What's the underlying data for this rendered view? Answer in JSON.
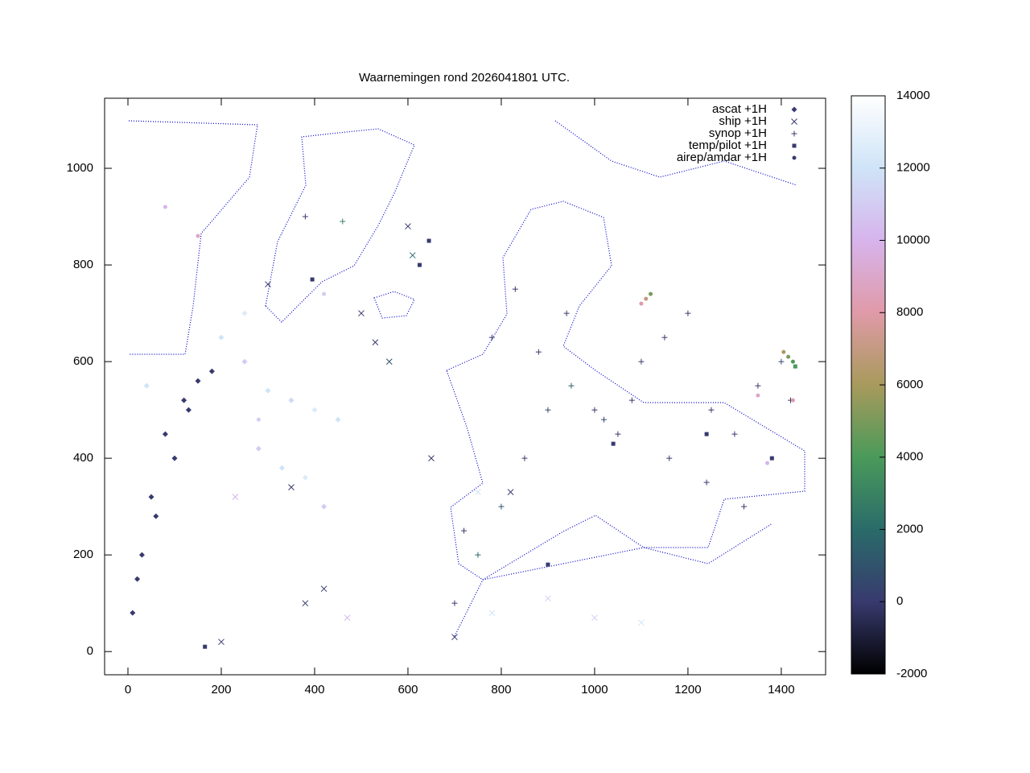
{
  "chart_data": {
    "type": "scatter",
    "title": "Waarnemingen rond 2026041801 UTC.",
    "xlim": [
      -50,
      1495
    ],
    "ylim": [
      -48,
      1145
    ],
    "xticks": [
      0,
      200,
      400,
      600,
      800,
      1000,
      1200,
      1400
    ],
    "yticks": [
      0,
      200,
      400,
      600,
      800,
      1000
    ],
    "colorbar": {
      "lim": [
        -2000,
        14000
      ],
      "ticks": [
        -2000,
        0,
        2000,
        4000,
        6000,
        8000,
        10000,
        12000,
        14000
      ],
      "colors": [
        "#000000",
        "#383a6e",
        "#2a6b6a",
        "#4a9a5a",
        "#a89a5c",
        "#e09aa8",
        "#d7b4ec",
        "#cfe4f8",
        "#ffffff"
      ]
    },
    "series": [
      {
        "name": "ascat +1H",
        "marker": "diamond",
        "x": [
          10,
          30,
          50,
          80,
          20,
          60,
          100,
          130,
          150,
          180,
          40,
          120,
          250,
          300,
          350,
          400,
          450,
          280,
          330,
          380,
          420,
          200,
          250
        ],
        "y": [
          80,
          200,
          320,
          450,
          150,
          280,
          400,
          500,
          560,
          580,
          550,
          520,
          600,
          540,
          520,
          500,
          480,
          420,
          380,
          360,
          300,
          650,
          700
        ],
        "z": [
          0,
          0,
          0,
          0,
          0,
          0,
          0,
          0,
          0,
          0,
          12000,
          0,
          11000,
          12000,
          11500,
          12500,
          12000,
          11000,
          12000,
          12500,
          11000,
          12000,
          12500
        ]
      },
      {
        "name": "ship +1H",
        "marker": "cross",
        "x": [
          200,
          300,
          350,
          420,
          500,
          560,
          600,
          650,
          700,
          750,
          820,
          900,
          1000,
          1100,
          230,
          380,
          470,
          530,
          610,
          780
        ],
        "y": [
          20,
          760,
          340,
          130,
          700,
          600,
          880,
          400,
          30,
          330,
          330,
          110,
          70,
          60,
          320,
          100,
          70,
          640,
          820,
          80
        ],
        "z": [
          0,
          0,
          0,
          0,
          0,
          1000,
          0,
          0,
          0,
          12000,
          0,
          11000,
          11000,
          12000,
          10000,
          0,
          10000,
          0,
          2000,
          12000
        ]
      },
      {
        "name": "synop +1H",
        "marker": "plus",
        "x": [
          700,
          750,
          800,
          850,
          900,
          950,
          1000,
          1050,
          1100,
          1150,
          1200,
          1250,
          1300,
          1350,
          1400,
          720,
          780,
          830,
          880,
          940,
          1020,
          1080,
          1160,
          1240,
          1320,
          1420,
          460,
          380
        ],
        "y": [
          100,
          200,
          300,
          400,
          500,
          550,
          500,
          450,
          600,
          650,
          700,
          500,
          450,
          550,
          600,
          250,
          650,
          750,
          620,
          700,
          480,
          520,
          400,
          350,
          300,
          520,
          890,
          900
        ],
        "z": [
          0,
          2000,
          1000,
          0,
          500,
          1500,
          0,
          0,
          0,
          0,
          0,
          0,
          0,
          0,
          500,
          0,
          0,
          0,
          0,
          0,
          500,
          0,
          0,
          0,
          0,
          0,
          3000,
          0
        ]
      },
      {
        "name": "temp/pilot +1H",
        "marker": "square",
        "x": [
          165,
          395,
          625,
          645,
          900,
          1040,
          1240,
          1380,
          1430
        ],
        "y": [
          10,
          770,
          800,
          850,
          180,
          430,
          450,
          400,
          590
        ],
        "z": [
          0,
          0,
          0,
          0,
          0,
          0,
          0,
          0,
          4000
        ]
      },
      {
        "name": "airep/amdar +1H",
        "marker": "dot",
        "x": [
          1100,
          1110,
          1120,
          1405,
          1415,
          1425,
          1350,
          1370,
          1425,
          80,
          280,
          150,
          420
        ],
        "y": [
          720,
          730,
          740,
          620,
          610,
          600,
          530,
          390,
          520,
          920,
          480,
          860,
          740
        ],
        "z": [
          8000,
          7000,
          5000,
          6000,
          5000,
          4000,
          9000,
          10000,
          8000,
          10000,
          11000,
          9000,
          11000
        ]
      }
    ]
  }
}
